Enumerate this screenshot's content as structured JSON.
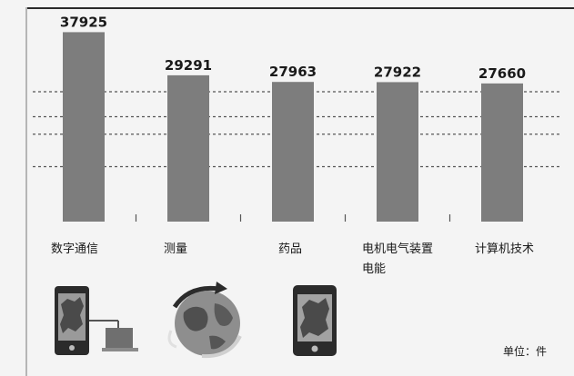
{
  "chart_data": {
    "type": "bar",
    "categories": [
      "数字通信",
      "测量",
      "药品",
      "电机电气装置电能",
      "计算机技术"
    ],
    "category_display": [
      [
        "数字通信"
      ],
      [
        "测量"
      ],
      [
        "药品"
      ],
      [
        "电机电气装置",
        "电能"
      ],
      [
        "计算机技术"
      ]
    ],
    "values": [
      37925,
      29291,
      27963,
      27922,
      27660
    ],
    "value_labels": [
      "37925",
      "29291",
      "27963",
      "27922",
      "27660"
    ],
    "ylim": [
      0,
      40000
    ],
    "unit": "单位：件",
    "legend": "none",
    "grid": "dashed horizontal",
    "colors": {
      "bar": "#7d7d7d"
    }
  },
  "decorations": {
    "icons": [
      "smartphone-map-icon",
      "globe-arrows-icon",
      "smartphone-map-icon"
    ]
  }
}
